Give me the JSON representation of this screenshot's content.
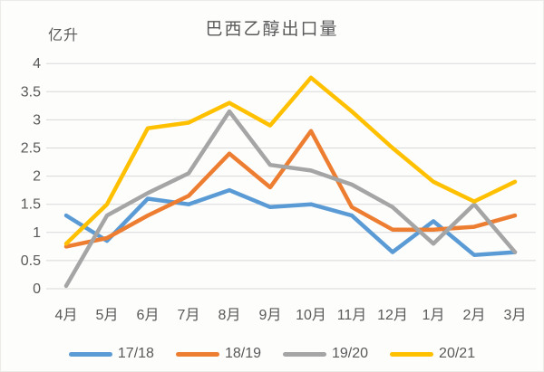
{
  "chart": {
    "title": "巴西乙醇出口量",
    "unit_label": "亿升"
  },
  "chart_data": {
    "type": "line",
    "title": "巴西乙醇出口量",
    "ylabel": "亿升",
    "xlabel": "",
    "categories": [
      "4月",
      "5月",
      "6月",
      "7月",
      "8月",
      "9月",
      "10月",
      "11月",
      "12月",
      "1月",
      "2月",
      "3月"
    ],
    "series": [
      {
        "name": "17/18",
        "color": "#5B9BD5",
        "values": [
          1.3,
          0.85,
          1.6,
          1.5,
          1.75,
          1.45,
          1.5,
          1.3,
          0.65,
          1.2,
          0.6,
          0.65
        ]
      },
      {
        "name": "18/19",
        "color": "#ED7D31",
        "values": [
          0.75,
          0.9,
          1.3,
          1.65,
          2.4,
          1.8,
          2.8,
          1.45,
          1.05,
          1.05,
          1.1,
          1.3
        ]
      },
      {
        "name": "19/20",
        "color": "#A5A5A5",
        "values": [
          0.05,
          1.3,
          1.7,
          2.05,
          3.15,
          2.2,
          2.1,
          1.85,
          1.45,
          0.8,
          1.5,
          0.65
        ]
      },
      {
        "name": "20/21",
        "color": "#FFC000",
        "values": [
          0.8,
          1.5,
          2.85,
          2.95,
          3.3,
          2.9,
          3.75,
          3.15,
          2.5,
          1.9,
          1.55,
          1.9
        ]
      }
    ],
    "yticks": [
      0,
      0.5,
      1,
      1.5,
      2,
      2.5,
      3,
      3.5,
      4
    ],
    "ylim": [
      0,
      4
    ],
    "grid": true,
    "gridline_color": "#d9d9d9",
    "tick_label_color": "#595959",
    "legend_position": "bottom"
  }
}
